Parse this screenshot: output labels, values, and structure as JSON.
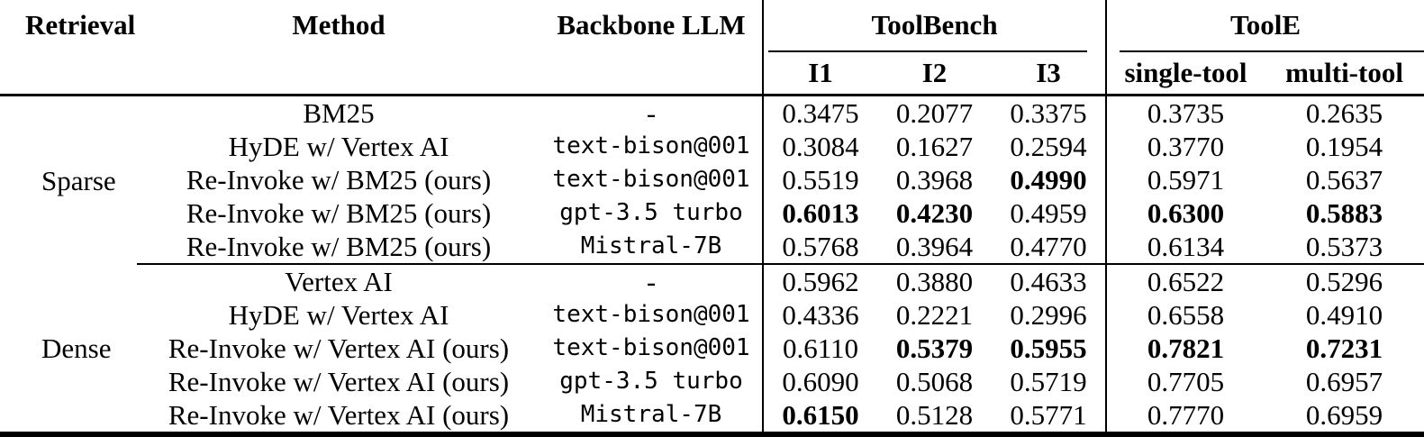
{
  "table": {
    "header": {
      "retrieval": "Retrieval",
      "method": "Method",
      "backbone": "Backbone LLM",
      "groups": [
        {
          "label": "ToolBench",
          "subs": [
            "I1",
            "I2",
            "I3"
          ]
        },
        {
          "label": "ToolE",
          "subs": [
            "single-tool",
            "multi-tool"
          ]
        }
      ]
    },
    "body": [
      {
        "retrieval": "Sparse",
        "rows": [
          {
            "method": "BM25",
            "backbone": "-",
            "cells": [
              {
                "v": "0.3475",
                "bold": false
              },
              {
                "v": "0.2077",
                "bold": false
              },
              {
                "v": "0.3375",
                "bold": false
              },
              {
                "v": "0.3735",
                "bold": false
              },
              {
                "v": "0.2635",
                "bold": false
              }
            ]
          },
          {
            "method": "HyDE w/ Vertex AI",
            "backbone": "text-bison@001",
            "cells": [
              {
                "v": "0.3084",
                "bold": false
              },
              {
                "v": "0.1627",
                "bold": false
              },
              {
                "v": "0.2594",
                "bold": false
              },
              {
                "v": "0.3770",
                "bold": false
              },
              {
                "v": "0.1954",
                "bold": false
              }
            ]
          },
          {
            "method": "Re-Invoke w/ BM25 (ours)",
            "backbone": "text-bison@001",
            "cells": [
              {
                "v": "0.5519",
                "bold": false
              },
              {
                "v": "0.3968",
                "bold": false
              },
              {
                "v": "0.4990",
                "bold": true
              },
              {
                "v": "0.5971",
                "bold": false
              },
              {
                "v": "0.5637",
                "bold": false
              }
            ]
          },
          {
            "method": "Re-Invoke w/ BM25 (ours)",
            "backbone": "gpt-3.5 turbo",
            "cells": [
              {
                "v": "0.6013",
                "bold": true
              },
              {
                "v": "0.4230",
                "bold": true
              },
              {
                "v": "0.4959",
                "bold": false
              },
              {
                "v": "0.6300",
                "bold": true
              },
              {
                "v": "0.5883",
                "bold": true
              }
            ]
          },
          {
            "method": "Re-Invoke w/ BM25 (ours)",
            "backbone": "Mistral-7B",
            "cells": [
              {
                "v": "0.5768",
                "bold": false
              },
              {
                "v": "0.3964",
                "bold": false
              },
              {
                "v": "0.4770",
                "bold": false
              },
              {
                "v": "0.6134",
                "bold": false
              },
              {
                "v": "0.5373",
                "bold": false
              }
            ]
          }
        ]
      },
      {
        "retrieval": "Dense",
        "rows": [
          {
            "method": "Vertex AI",
            "backbone": "-",
            "cells": [
              {
                "v": "0.5962",
                "bold": false
              },
              {
                "v": "0.3880",
                "bold": false
              },
              {
                "v": "0.4633",
                "bold": false
              },
              {
                "v": "0.6522",
                "bold": false
              },
              {
                "v": "0.5296",
                "bold": false
              }
            ]
          },
          {
            "method": "HyDE w/ Vertex AI",
            "backbone": "text-bison@001",
            "cells": [
              {
                "v": "0.4336",
                "bold": false
              },
              {
                "v": "0.2221",
                "bold": false
              },
              {
                "v": "0.2996",
                "bold": false
              },
              {
                "v": "0.6558",
                "bold": false
              },
              {
                "v": "0.4910",
                "bold": false
              }
            ]
          },
          {
            "method": "Re-Invoke w/ Vertex AI (ours)",
            "backbone": "text-bison@001",
            "cells": [
              {
                "v": "0.6110",
                "bold": false
              },
              {
                "v": "0.5379",
                "bold": true
              },
              {
                "v": "0.5955",
                "bold": true
              },
              {
                "v": "0.7821",
                "bold": true
              },
              {
                "v": "0.7231",
                "bold": true
              }
            ]
          },
          {
            "method": "Re-Invoke w/ Vertex AI (ours)",
            "backbone": "gpt-3.5 turbo",
            "cells": [
              {
                "v": "0.6090",
                "bold": false
              },
              {
                "v": "0.5068",
                "bold": false
              },
              {
                "v": "0.5719",
                "bold": false
              },
              {
                "v": "0.7705",
                "bold": false
              },
              {
                "v": "0.6957",
                "bold": false
              }
            ]
          },
          {
            "method": "Re-Invoke w/ Vertex AI (ours)",
            "backbone": "Mistral-7B",
            "cells": [
              {
                "v": "0.6150",
                "bold": true
              },
              {
                "v": "0.5128",
                "bold": false
              },
              {
                "v": "0.5771",
                "bold": false
              },
              {
                "v": "0.7770",
                "bold": false
              },
              {
                "v": "0.6959",
                "bold": false
              }
            ]
          }
        ]
      }
    ]
  }
}
